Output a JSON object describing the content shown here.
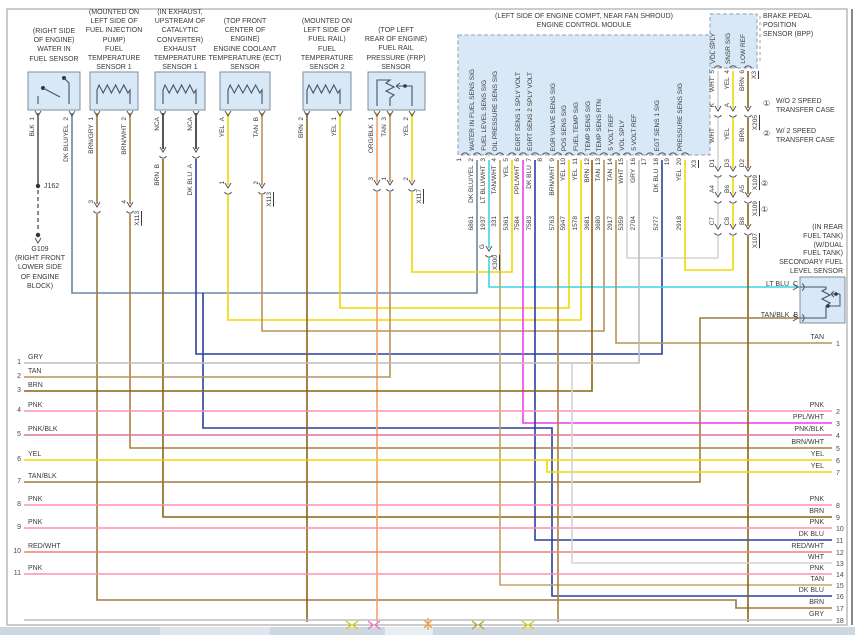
{
  "diagram": {
    "colors": {
      "BLK": "#585858",
      "DK BLU/YEL": "#6a86a7",
      "BRN/GRY": "#9b7a45",
      "BRN/WHT": "#a8803d",
      "NCA": "#2b2b2b",
      "BRN": "#8a6317",
      "DK BLU": "#2a3f9e",
      "YEL": "#f0d800",
      "TAN": "#b7935a",
      "ORG/BLK": "#f2a468",
      "LT BLU/WHT": "#3fd2e6",
      "LT BLU": "#3fd2e6",
      "TAN/WHT": "#c3a268",
      "PPL/WHT": "#e93fe9",
      "WHT": "#d4d4d4",
      "GRY": "#bdbdbd",
      "PNK": "#ff8fb1",
      "PNK/BLK": "#e0739d",
      "RED/WHT": "#ee8270",
      "TAN/BLK": "#9d7d3f"
    },
    "sensors": [
      {
        "caption": [
          "(RIGHT SIDE",
          "OF ENGINE)",
          "WATER IN",
          "FUEL SENSOR"
        ],
        "pins": [
          {
            "id": "1",
            "color": "BLK"
          },
          {
            "id": "2",
            "color": "DK BLU/YEL"
          }
        ]
      },
      {
        "caption": [
          "(MOUNTED ON",
          "LEFT SIDE OF",
          "FUEL INJECTION",
          "PUMP)",
          "FUEL",
          "TEMPERATURE",
          "SENSOR 1"
        ],
        "pins": [
          {
            "id": "1",
            "color": "BRN/GRY"
          },
          {
            "id": "2",
            "color": "BRN/WHT"
          }
        ]
      },
      {
        "caption": [
          "(IN EXHAUST,",
          "UPSTREAM OF",
          "CATALYTIC",
          "CONVERTER)",
          "EXHAUST",
          "TEMPERATURE",
          "SENSOR 1"
        ],
        "pins": [
          {
            "id": "",
            "color": "NCA"
          },
          {
            "id": "",
            "color": "NCA"
          }
        ],
        "lower_pins": [
          {
            "id": "B",
            "color": "BRN"
          },
          {
            "id": "A",
            "color": "DK BLU"
          }
        ]
      },
      {
        "caption": [
          "(TOP FRONT",
          "CENTER OF",
          "ENGINE)",
          "ENGINE COOLANT",
          "TEMPERATURE (ECT)",
          "SENSOR"
        ],
        "pins": [
          {
            "id": "A",
            "color": "YEL"
          },
          {
            "id": "B",
            "color": "TAN"
          }
        ]
      },
      {
        "caption": [
          "(MOUNTED ON",
          "LEFT SIDE OF",
          "FUEL RAIL)",
          "FUEL",
          "TEMPERATURE",
          "SENSOR 2"
        ],
        "pins": [
          {
            "id": "2",
            "color": "BRN"
          },
          {
            "id": "1",
            "color": "YEL"
          }
        ]
      },
      {
        "caption": [
          "(TOP LEFT",
          "REAR OF ENGINE)",
          "FUEL RAIL",
          "PRESSURE (FRP)",
          "SENSOR"
        ],
        "pins": [
          {
            "id": "1",
            "color": "ORG/BLK"
          },
          {
            "id": "3",
            "color": "TAN"
          },
          {
            "id": "2",
            "color": "YEL"
          }
        ]
      }
    ],
    "ecm": {
      "caption": [
        "(LEFT SIDE OF ENGINE COMPT, NEAR FAN SHROUD)",
        "ENGINE CONTROL MODULE"
      ],
      "connector": "X3",
      "pins": [
        {
          "n": "1"
        },
        {
          "n": "2",
          "signal": "WATER IN FUEL SENS SIG",
          "color": "DK BLU/YEL",
          "circuit": "6861"
        },
        {
          "n": "3",
          "signal": "FUEL LEVEL SENS SIG",
          "color": "LT BLU/WHT",
          "circuit": "1937"
        },
        {
          "n": "4",
          "signal": "OIL PRESSURE SENS SIG",
          "color": "TAN/WHT",
          "circuit": "331"
        },
        {
          "n": "5",
          "signal": "",
          "color": "YEL",
          "circuit": "5361"
        },
        {
          "n": "6",
          "signal": "EGRT SENS 1 SPLY VOLT",
          "color": "PPL/WHT",
          "circuit": "7584"
        },
        {
          "n": "7",
          "signal": "EGRT SENS 2 SPLY VOLT",
          "color": "DK BLU",
          "circuit": "7583"
        },
        {
          "n": "8"
        },
        {
          "n": "9",
          "signal": "EGR VALVE SENS SIG",
          "color": "BRN/WHT",
          "circuit": "5763"
        },
        {
          "n": "10",
          "signal": "POS SENS SIG",
          "color": "YEL",
          "circuit": "5947"
        },
        {
          "n": "11",
          "signal": "FUEL TEMP SIG",
          "color": "YEL",
          "circuit": "1578"
        },
        {
          "n": "12",
          "signal": "TEMP SENS SIG",
          "color": "BRN",
          "circuit": "3681"
        },
        {
          "n": "13",
          "signal": "TEMP SENS RTN",
          "color": "TAN",
          "circuit": "3680"
        },
        {
          "n": "14",
          "signal": "5 VOLT REF",
          "color": "TAN",
          "circuit": "2917"
        },
        {
          "n": "15",
          "signal": "VOL SPLY",
          "color": "WHT",
          "circuit": "5359"
        },
        {
          "n": "16",
          "signal": "5 VOLT REF",
          "color": "GRY",
          "circuit": "2704"
        },
        {
          "n": "17"
        },
        {
          "n": "18",
          "signal": "EGT SENS 1 SIG",
          "color": "DK BLU",
          "circuit": "5277"
        },
        {
          "n": "19"
        },
        {
          "n": "20",
          "signal": "PRESSURE SENS SIG",
          "color": "YEL",
          "circuit": "2918"
        }
      ]
    },
    "bpp": {
      "caption": [
        "BRAKE PEDAL",
        "POSITION",
        "SENSOR (BPP)"
      ],
      "connector": "X3",
      "signals": [
        "VOL SPLY",
        "SNSR SIG",
        "LOW REF"
      ],
      "pins": [
        {
          "id": "5",
          "color": "WHT"
        },
        {
          "id": "4",
          "color": "YEL"
        },
        {
          "id": "6",
          "color": "BRN"
        }
      ]
    },
    "chain": {
      "colors": [
        "WHT",
        "YEL",
        "BRN"
      ],
      "connectors": [
        {
          "label": "X205",
          "note": "",
          "pins": [
            "K",
            "A",
            ""
          ]
        },
        {
          "label": "X109",
          "note": "2",
          "pins": [
            "D1",
            "D3",
            "D2"
          ]
        },
        {
          "label": "X109",
          "note": "1",
          "pins": [
            "A4",
            "B6",
            "A5"
          ]
        },
        {
          "label": "X107",
          "note": "",
          "pins": [
            "C7",
            "C8",
            "B8"
          ]
        }
      ]
    },
    "notes": [
      {
        "n": "1",
        "text": [
          "W/O 2 SPEED",
          "TRANSFER CASE"
        ]
      },
      {
        "n": "2",
        "text": [
          "W/ 2 SPEED",
          "TRANSFER CASE"
        ]
      }
    ],
    "fuel_level_sensor": {
      "caption": [
        "(IN REAR",
        "FUEL TANK)",
        "(W/DUAL",
        "FUEL TANK)",
        "SECONDARY FUEL",
        "LEVEL SENSOR"
      ],
      "pins": [
        {
          "id": "C",
          "color": "LT BLU"
        },
        {
          "id": "B",
          "color": "TAN/BLK"
        }
      ]
    },
    "ground": {
      "junction": "J162",
      "id": "G109",
      "caption": [
        "(RIGHT FRONT",
        "LOWER SIDE",
        "OF ENGINE",
        "BLOCK)"
      ]
    },
    "inline_connectors": {
      "x113": "X113",
      "x117": "X117",
      "x300": "X300",
      "x300_pin": "G",
      "x205": "X205",
      "x109": "X109",
      "x107": "X107"
    },
    "left_wires": [
      {
        "n": "1",
        "color": "GRY"
      },
      {
        "n": "2",
        "color": "TAN"
      },
      {
        "n": "3",
        "color": "BRN"
      },
      {
        "n": "4",
        "color": "PNK"
      },
      {
        "n": "5",
        "color": "PNK/BLK"
      },
      {
        "n": "6",
        "color": "YEL"
      },
      {
        "n": "7",
        "color": "TAN/BLK"
      },
      {
        "n": "8",
        "color": "PNK"
      },
      {
        "n": "9",
        "color": "PNK"
      },
      {
        "n": "10",
        "color": "RED/WHT"
      },
      {
        "n": "11",
        "color": "PNK"
      }
    ],
    "right_wires": [
      {
        "n": "1",
        "color": "TAN"
      },
      {
        "n": "2",
        "color": "PNK"
      },
      {
        "n": "3",
        "color": "PPL/WHT"
      },
      {
        "n": "4",
        "color": "PNK/BLK"
      },
      {
        "n": "5",
        "color": "BRN/WHT"
      },
      {
        "n": "6",
        "color": "YEL"
      },
      {
        "n": "7",
        "color": "YEL"
      },
      {
        "n": "8",
        "color": "PNK"
      },
      {
        "n": "9",
        "color": "BRN"
      },
      {
        "n": "10",
        "color": "PNK"
      },
      {
        "n": "11",
        "color": "DK BLU"
      },
      {
        "n": "12",
        "color": "RED/WHT"
      },
      {
        "n": "13",
        "color": "WHT"
      },
      {
        "n": "14",
        "color": "PNK"
      },
      {
        "n": "15",
        "color": "TAN"
      },
      {
        "n": "16",
        "color": "DK BLU"
      },
      {
        "n": "17",
        "color": "BRN"
      },
      {
        "n": "18",
        "color": "GRY"
      }
    ]
  }
}
